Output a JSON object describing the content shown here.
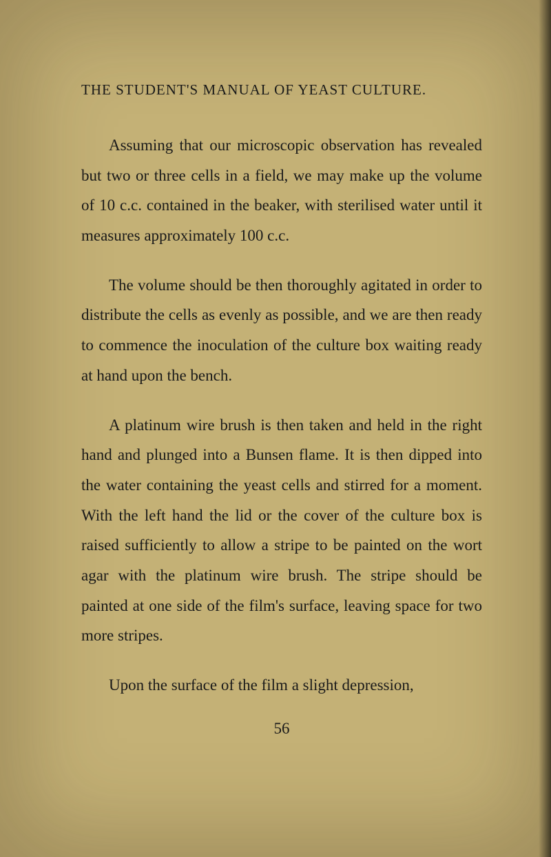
{
  "header": "THE STUDENT'S MANUAL OF YEAST CULTURE.",
  "paragraphs": {
    "p1": "Assuming that our microscopic observation has revealed but two or three cells in a field, we may make up the volume of 10 c.c. contained in the beaker, with sterilised water until it measures approximately 100 c.c.",
    "p2": "The volume should be then thoroughly agitated in order to distribute the cells as evenly as possible, and we are then ready to commence the inoculation of the culture box waiting ready at hand upon the bench.",
    "p3": "A platinum wire brush is then taken and held in the right hand and plunged into a Bunsen flame. It is then dipped into the water containing the yeast cells and stirred for a moment. With the left hand the lid or the cover of the culture box is raised sufficiently to allow a stripe to be painted on the wort agar with the platinum wire brush. The stripe should be painted at one side of the film's surface, leaving space for two more stripes.",
    "p4": "Upon the surface of the film a slight depression,"
  },
  "pageNumber": "56",
  "colors": {
    "background": "#c4b176",
    "text": "#1a1a1a"
  },
  "typography": {
    "header_fontsize": 21,
    "body_fontsize": 23,
    "line_height": 1.9,
    "font_family": "Georgia, Times New Roman, serif"
  }
}
